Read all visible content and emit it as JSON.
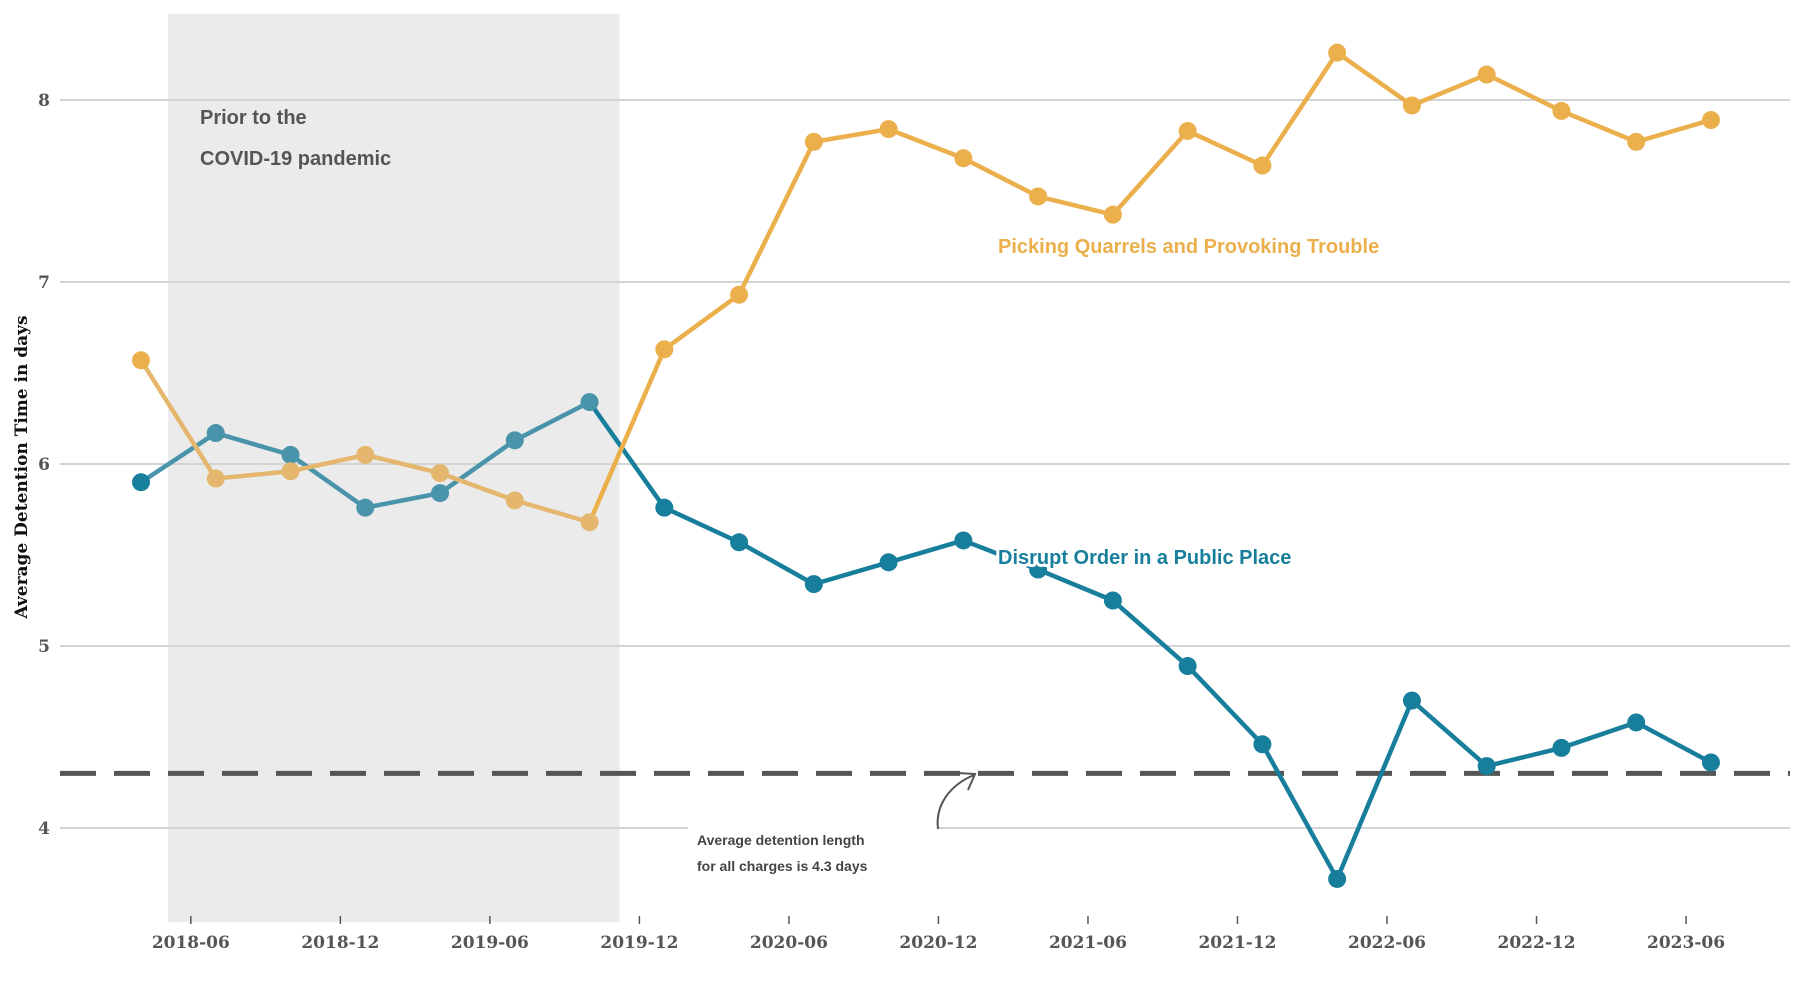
{
  "chart_data": {
    "type": "line",
    "ylabel": "Average Detention Time  in days",
    "ylim": [
      3.5,
      8.5
    ],
    "yticks": [
      4,
      5,
      6,
      7,
      8
    ],
    "xlim": [
      "2018-04",
      "2023-09"
    ],
    "xticks": [
      "2018-06",
      "2018-12",
      "2019-06",
      "2019-12",
      "2020-06",
      "2020-12",
      "2021-06",
      "2021-12",
      "2022-06",
      "2022-12",
      "2023-06"
    ],
    "grid": "horizontal",
    "x": [
      "2018-04",
      "2018-07",
      "2018-10",
      "2019-01",
      "2019-04",
      "2019-07",
      "2019-10",
      "2020-01",
      "2020-04",
      "2020-07",
      "2020-10",
      "2021-01",
      "2021-04",
      "2021-07",
      "2021-10",
      "2022-01",
      "2022-04",
      "2022-07",
      "2022-10",
      "2023-01",
      "2023-04",
      "2023-07"
    ],
    "series": [
      {
        "name": "Disrupt Order in a Public Place",
        "color": "#177e9c",
        "color_shaded": "#4a94ab",
        "values": [
          5.9,
          6.17,
          6.05,
          5.76,
          5.84,
          6.13,
          6.34,
          5.76,
          5.57,
          5.34,
          5.46,
          5.58,
          5.42,
          5.25,
          4.89,
          4.46,
          3.72,
          4.7,
          4.34,
          4.44,
          4.58,
          4.36
        ]
      },
      {
        "name": "Picking Quarrels and Provoking Trouble",
        "color": "#ebaf4c",
        "color_shaded": "#e5b76e",
        "values": [
          6.57,
          5.92,
          5.96,
          6.05,
          5.95,
          5.8,
          5.68,
          6.63,
          6.93,
          7.77,
          7.84,
          7.68,
          7.47,
          7.37,
          7.83,
          7.64,
          8.26,
          7.97,
          8.14,
          7.94,
          7.77,
          7.89
        ]
      }
    ],
    "shaded_region": {
      "from": "2018-05",
      "to": "2019-11",
      "label_lines": [
        "Prior to the",
        "COVID-19 pandemic"
      ],
      "color": "#ebebeb"
    },
    "reference_line": {
      "value": 4.3,
      "color": "#555555",
      "note_lines": [
        "Average detention length",
        "for all charges is 4.3 days"
      ]
    }
  }
}
